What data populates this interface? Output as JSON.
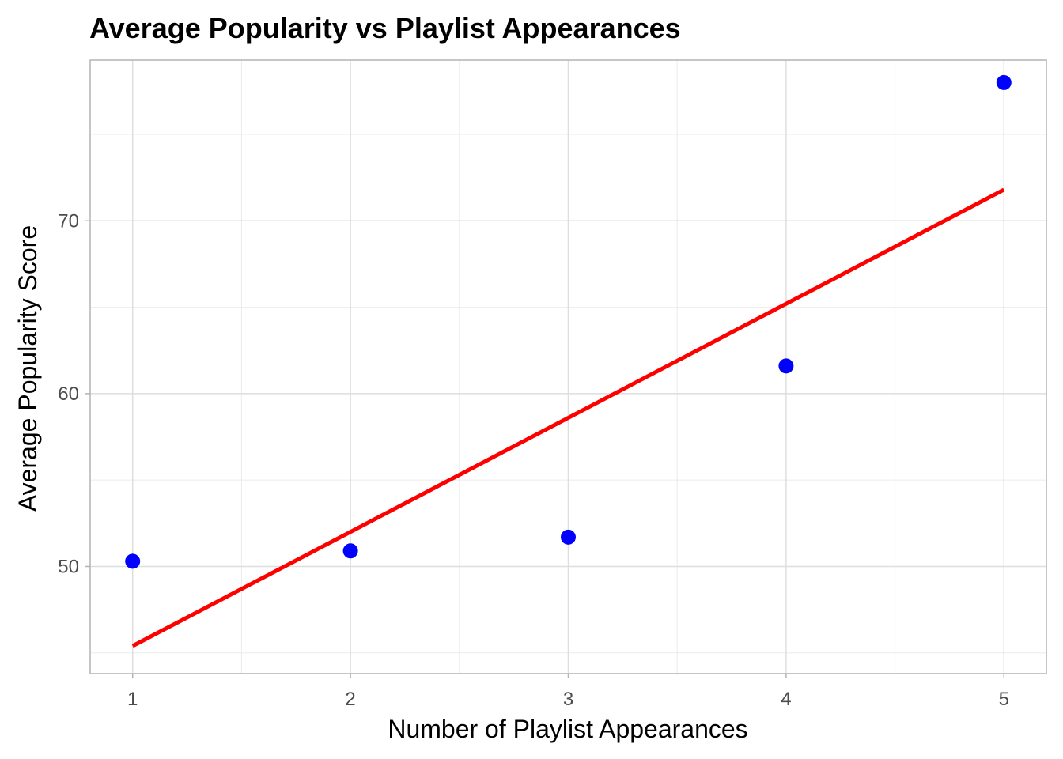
{
  "chart_data": {
    "type": "scatter",
    "title": "Average Popularity vs Playlist Appearances",
    "xlabel": "Number of Playlist Appearances",
    "ylabel": "Average Popularity Score",
    "xlim": [
      0.805,
      5.195
    ],
    "ylim": [
      43.8,
      79.3
    ],
    "x_ticks": [
      1,
      2,
      3,
      4,
      5
    ],
    "y_ticks": [
      50,
      60,
      70
    ],
    "grid": true,
    "points": {
      "x": [
        1,
        2,
        3,
        4,
        5
      ],
      "y": [
        50.3,
        50.9,
        51.7,
        61.6,
        78.0
      ],
      "color": "#0000ff"
    },
    "trend_line": {
      "type": "linear fit",
      "x": [
        1,
        5
      ],
      "y": [
        45.4,
        71.8
      ],
      "color": "#ff0000"
    }
  }
}
